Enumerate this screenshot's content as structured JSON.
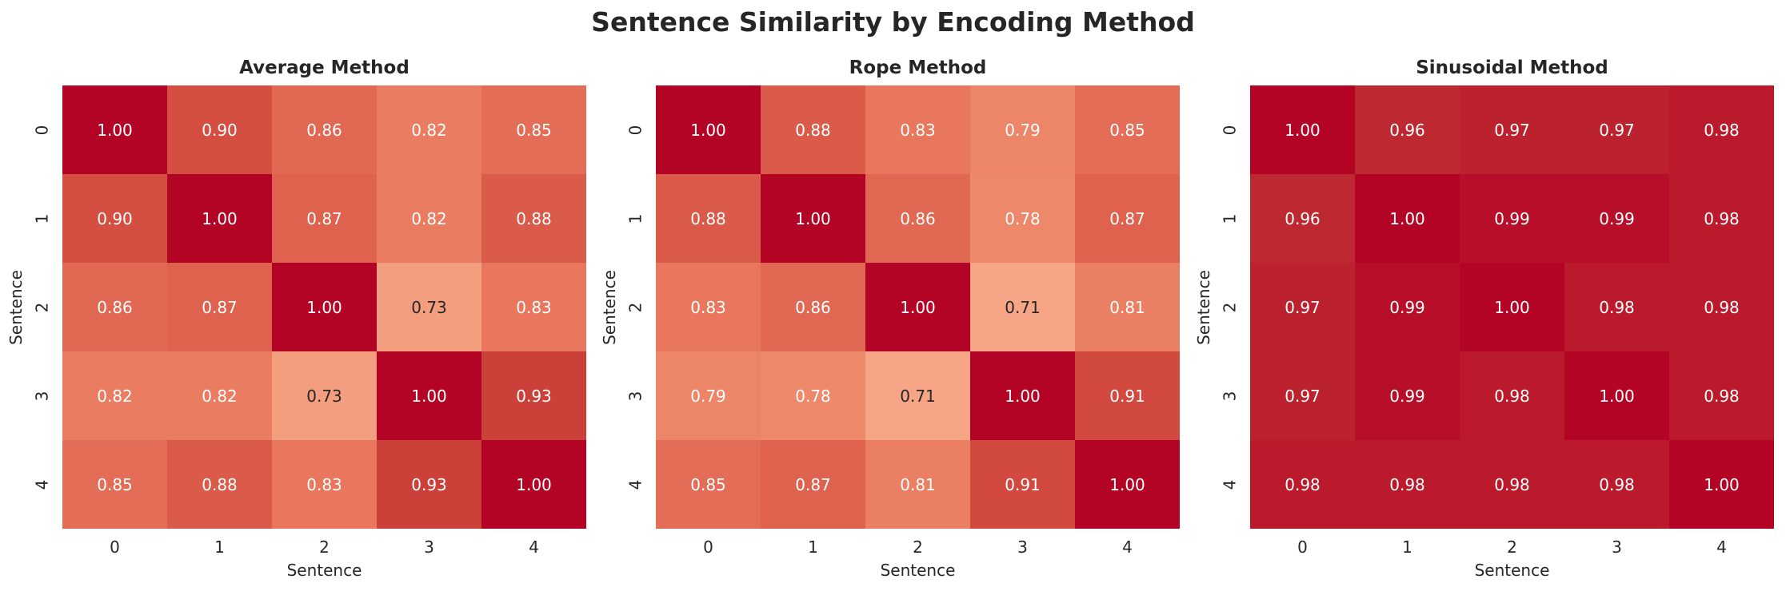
{
  "title": "Sentence Similarity by Encoding Method",
  "chart_data": [
    {
      "type": "heatmap",
      "title": "Average Method",
      "xlabel": "Sentence",
      "ylabel": "Sentence",
      "xticks": [
        "0",
        "1",
        "2",
        "3",
        "4"
      ],
      "yticks": [
        "0",
        "1",
        "2",
        "3",
        "4"
      ],
      "values": [
        [
          1.0,
          0.9,
          0.86,
          0.82,
          0.85
        ],
        [
          0.9,
          1.0,
          0.87,
          0.82,
          0.88
        ],
        [
          0.86,
          0.87,
          1.0,
          0.73,
          0.83
        ],
        [
          0.82,
          0.82,
          0.73,
          1.0,
          0.93
        ],
        [
          0.85,
          0.88,
          0.83,
          0.93,
          1.0
        ]
      ],
      "colormap": "coolwarm"
    },
    {
      "type": "heatmap",
      "title": "Rope Method",
      "xlabel": "Sentence",
      "ylabel": "Sentence",
      "xticks": [
        "0",
        "1",
        "2",
        "3",
        "4"
      ],
      "yticks": [
        "0",
        "1",
        "2",
        "3",
        "4"
      ],
      "values": [
        [
          1.0,
          0.88,
          0.83,
          0.79,
          0.85
        ],
        [
          0.88,
          1.0,
          0.86,
          0.78,
          0.87
        ],
        [
          0.83,
          0.86,
          1.0,
          0.71,
          0.81
        ],
        [
          0.79,
          0.78,
          0.71,
          1.0,
          0.91
        ],
        [
          0.85,
          0.87,
          0.81,
          0.91,
          1.0
        ]
      ],
      "colormap": "coolwarm"
    },
    {
      "type": "heatmap",
      "title": "Sinusoidal Method",
      "xlabel": "Sentence",
      "ylabel": "Sentence",
      "xticks": [
        "0",
        "1",
        "2",
        "3",
        "4"
      ],
      "yticks": [
        "0",
        "1",
        "2",
        "3",
        "4"
      ],
      "values": [
        [
          1.0,
          0.96,
          0.97,
          0.97,
          0.98
        ],
        [
          0.96,
          1.0,
          0.99,
          0.99,
          0.98
        ],
        [
          0.97,
          0.99,
          1.0,
          0.98,
          0.98
        ],
        [
          0.97,
          0.99,
          0.98,
          1.0,
          0.98
        ],
        [
          0.98,
          0.98,
          0.98,
          0.98,
          1.0
        ]
      ],
      "colormap": "coolwarm"
    }
  ]
}
